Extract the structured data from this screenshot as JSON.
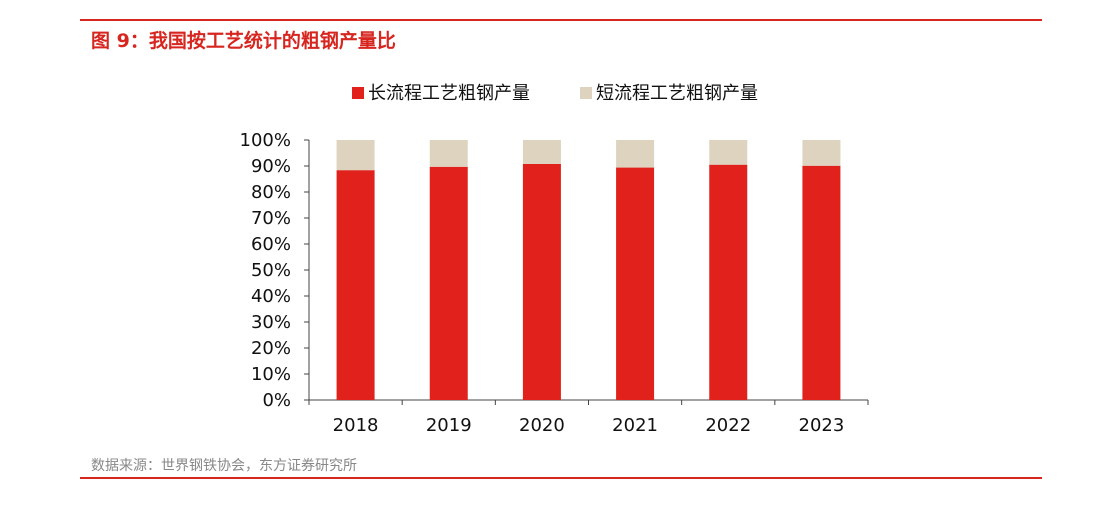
{
  "figure": {
    "title": "图 9：我国按工艺统计的粗钢产量比",
    "source": "数据来源：世界钢铁协会，东方证券研究所"
  },
  "chart_data": {
    "type": "bar",
    "stacked": true,
    "percent": true,
    "categories": [
      "2018",
      "2019",
      "2020",
      "2021",
      "2022",
      "2023"
    ],
    "series": [
      {
        "name": "长流程工艺粗钢产量",
        "color": "#e0211c",
        "values": [
          88.4,
          89.7,
          90.8,
          89.4,
          90.5,
          90.1
        ]
      },
      {
        "name": "短流程工艺粗钢产量",
        "color": "#ddd3bf",
        "values": [
          11.6,
          10.3,
          9.2,
          10.6,
          9.5,
          9.9
        ]
      }
    ],
    "y_ticks": [
      "0%",
      "10%",
      "20%",
      "30%",
      "40%",
      "50%",
      "60%",
      "70%",
      "80%",
      "90%",
      "100%"
    ],
    "ylim": [
      0,
      100
    ],
    "legend_position": "top",
    "grid": false
  }
}
